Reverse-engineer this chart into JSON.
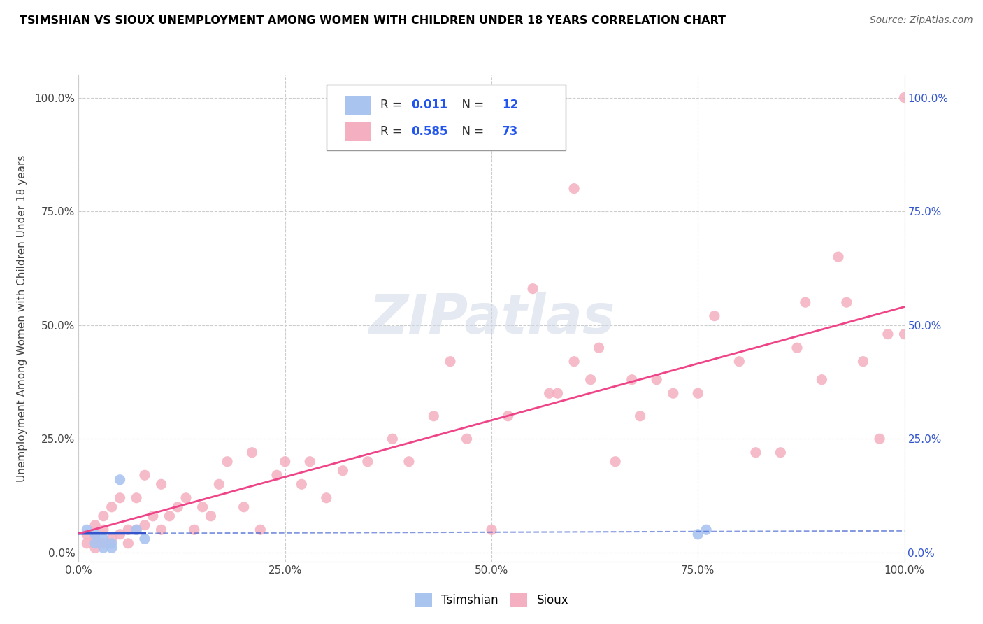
{
  "title": "TSIMSHIAN VS SIOUX UNEMPLOYMENT AMONG WOMEN WITH CHILDREN UNDER 18 YEARS CORRELATION CHART",
  "source": "Source: ZipAtlas.com",
  "ylabel": "Unemployment Among Women with Children Under 18 years",
  "xlim": [
    0.0,
    1.0
  ],
  "ylim": [
    -0.02,
    1.05
  ],
  "xticks": [
    0.0,
    0.25,
    0.5,
    0.75,
    1.0
  ],
  "xtick_labels": [
    "0.0%",
    "25.0%",
    "50.0%",
    "75.0%",
    "100.0%"
  ],
  "yticks": [
    0.0,
    0.25,
    0.5,
    0.75,
    1.0
  ],
  "ytick_labels": [
    "0.0%",
    "25.0%",
    "50.0%",
    "75.0%",
    "100.0%"
  ],
  "tsimshian_color": "#aac4f0",
  "sioux_color": "#f4afc0",
  "tsimshian_line_color": "#3355cc",
  "sioux_line_color": "#ee4488",
  "background_color": "#ffffff",
  "grid_color": "#cccccc",
  "watermark": "ZIPatlas",
  "legend_R_tsimshian": "0.011",
  "legend_N_tsimshian": "12",
  "legend_R_sioux": "0.585",
  "legend_N_sioux": "73",
  "tsimshian_x": [
    0.01,
    0.02,
    0.02,
    0.03,
    0.03,
    0.04,
    0.04,
    0.05,
    0.07,
    0.08,
    0.75,
    0.76
  ],
  "tsimshian_y": [
    0.05,
    0.02,
    0.04,
    0.01,
    0.03,
    0.01,
    0.02,
    0.16,
    0.05,
    0.03,
    0.04,
    0.05
  ],
  "sioux_x": [
    0.01,
    0.01,
    0.02,
    0.02,
    0.02,
    0.03,
    0.03,
    0.03,
    0.04,
    0.04,
    0.05,
    0.05,
    0.06,
    0.06,
    0.07,
    0.07,
    0.08,
    0.08,
    0.09,
    0.1,
    0.1,
    0.11,
    0.12,
    0.13,
    0.14,
    0.15,
    0.16,
    0.17,
    0.18,
    0.2,
    0.21,
    0.22,
    0.24,
    0.25,
    0.27,
    0.28,
    0.3,
    0.32,
    0.35,
    0.38,
    0.4,
    0.43,
    0.45,
    0.47,
    0.5,
    0.52,
    0.55,
    0.57,
    0.58,
    0.6,
    0.62,
    0.63,
    0.65,
    0.67,
    0.68,
    0.7,
    0.72,
    0.75,
    0.77,
    0.8,
    0.82,
    0.85,
    0.87,
    0.88,
    0.9,
    0.92,
    0.93,
    0.95,
    0.97,
    0.98,
    1.0,
    1.0,
    0.6
  ],
  "sioux_y": [
    0.02,
    0.04,
    0.01,
    0.03,
    0.06,
    0.02,
    0.05,
    0.08,
    0.03,
    0.1,
    0.04,
    0.12,
    0.02,
    0.05,
    0.05,
    0.12,
    0.06,
    0.17,
    0.08,
    0.05,
    0.15,
    0.08,
    0.1,
    0.12,
    0.05,
    0.1,
    0.08,
    0.15,
    0.2,
    0.1,
    0.22,
    0.05,
    0.17,
    0.2,
    0.15,
    0.2,
    0.12,
    0.18,
    0.2,
    0.25,
    0.2,
    0.3,
    0.42,
    0.25,
    0.05,
    0.3,
    0.58,
    0.35,
    0.35,
    0.42,
    0.38,
    0.45,
    0.2,
    0.38,
    0.3,
    0.38,
    0.35,
    0.35,
    0.52,
    0.42,
    0.22,
    0.22,
    0.45,
    0.55,
    0.38,
    0.65,
    0.55,
    0.42,
    0.25,
    0.48,
    0.48,
    1.0,
    0.8
  ]
}
